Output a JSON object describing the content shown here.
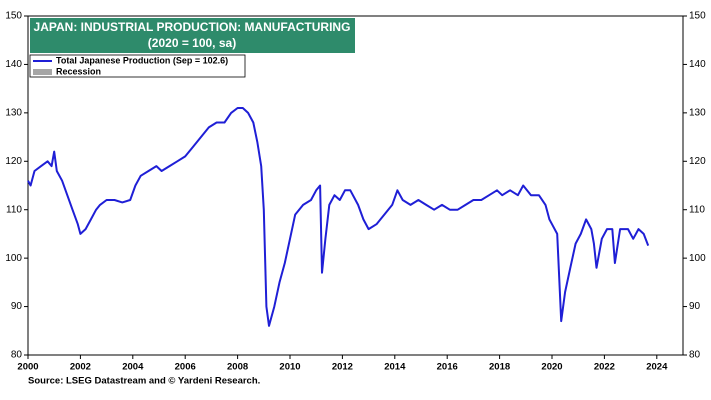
{
  "chart_data": {
    "type": "line",
    "title": "JAPAN: INDUSTRIAL PRODUCTION: MANUFACTURING",
    "subtitle": "(2020 = 100,  sa)",
    "source": "Source: LSEG Datastream and © Yardeni Research.",
    "xlim": [
      2000,
      2025
    ],
    "xticks": [
      2000,
      2002,
      2004,
      2006,
      2008,
      2010,
      2012,
      2014,
      2016,
      2018,
      2020,
      2022,
      2024
    ],
    "ylim": [
      80,
      150
    ],
    "yticks": [
      80,
      90,
      100,
      110,
      120,
      130,
      140,
      150
    ],
    "recession": {
      "name": "Recession",
      "color": "#a6a6a6"
    },
    "series": [
      {
        "name": "Total Japanese Production (Sep = 102.6)",
        "color": "#1f1fd6",
        "x": [
          2000.0,
          2000.1,
          2000.25,
          2000.5,
          2000.75,
          2000.9,
          2001.0,
          2001.1,
          2001.3,
          2001.5,
          2001.7,
          2001.9,
          2002.0,
          2002.2,
          2002.4,
          2002.6,
          2002.75,
          2003.0,
          2003.3,
          2003.6,
          2003.9,
          2004.1,
          2004.3,
          2004.6,
          2004.9,
          2005.1,
          2005.4,
          2005.7,
          2006.0,
          2006.3,
          2006.6,
          2006.9,
          2007.2,
          2007.5,
          2007.75,
          2008.0,
          2008.2,
          2008.4,
          2008.6,
          2008.75,
          2008.9,
          2009.0,
          2009.1,
          2009.2,
          2009.4,
          2009.6,
          2009.8,
          2010.0,
          2010.2,
          2010.5,
          2010.8,
          2011.0,
          2011.15,
          2011.22,
          2011.35,
          2011.5,
          2011.7,
          2011.9,
          2012.1,
          2012.3,
          2012.6,
          2012.8,
          2013.0,
          2013.3,
          2013.6,
          2013.9,
          2014.1,
          2014.3,
          2014.6,
          2014.9,
          2015.2,
          2015.5,
          2015.8,
          2016.1,
          2016.4,
          2016.7,
          2017.0,
          2017.3,
          2017.6,
          2017.9,
          2018.1,
          2018.4,
          2018.7,
          2018.9,
          2019.2,
          2019.5,
          2019.75,
          2019.9,
          2020.0,
          2020.2,
          2020.35,
          2020.5,
          2020.7,
          2020.9,
          2021.1,
          2021.3,
          2021.5,
          2021.6,
          2021.7,
          2021.9,
          2022.1,
          2022.3,
          2022.4,
          2022.6,
          2022.9,
          2023.1,
          2023.3,
          2023.5,
          2023.67
        ],
        "values": [
          116,
          115,
          118,
          119,
          120,
          119,
          122,
          118,
          116,
          113,
          110,
          107,
          105,
          106,
          108,
          110,
          111,
          112,
          112,
          111.5,
          112,
          115,
          117,
          118,
          119,
          118,
          119,
          120,
          121,
          123,
          125,
          127,
          128,
          128,
          130,
          131,
          131,
          130,
          128,
          124,
          119,
          110,
          90,
          86,
          90,
          95,
          99,
          104,
          109,
          111,
          112,
          114,
          115,
          97,
          104,
          111,
          113,
          112,
          114,
          114,
          111,
          108,
          106,
          107,
          109,
          111,
          114,
          112,
          111,
          112,
          111,
          110,
          111,
          110,
          110,
          111,
          112,
          112,
          113,
          114,
          113,
          114,
          113,
          115,
          113,
          113,
          111,
          108,
          107,
          105,
          87,
          93,
          98,
          103,
          105,
          108,
          106,
          103,
          98,
          104,
          106,
          106,
          99,
          106,
          106,
          104,
          106,
          105,
          102.6
        ]
      }
    ]
  }
}
